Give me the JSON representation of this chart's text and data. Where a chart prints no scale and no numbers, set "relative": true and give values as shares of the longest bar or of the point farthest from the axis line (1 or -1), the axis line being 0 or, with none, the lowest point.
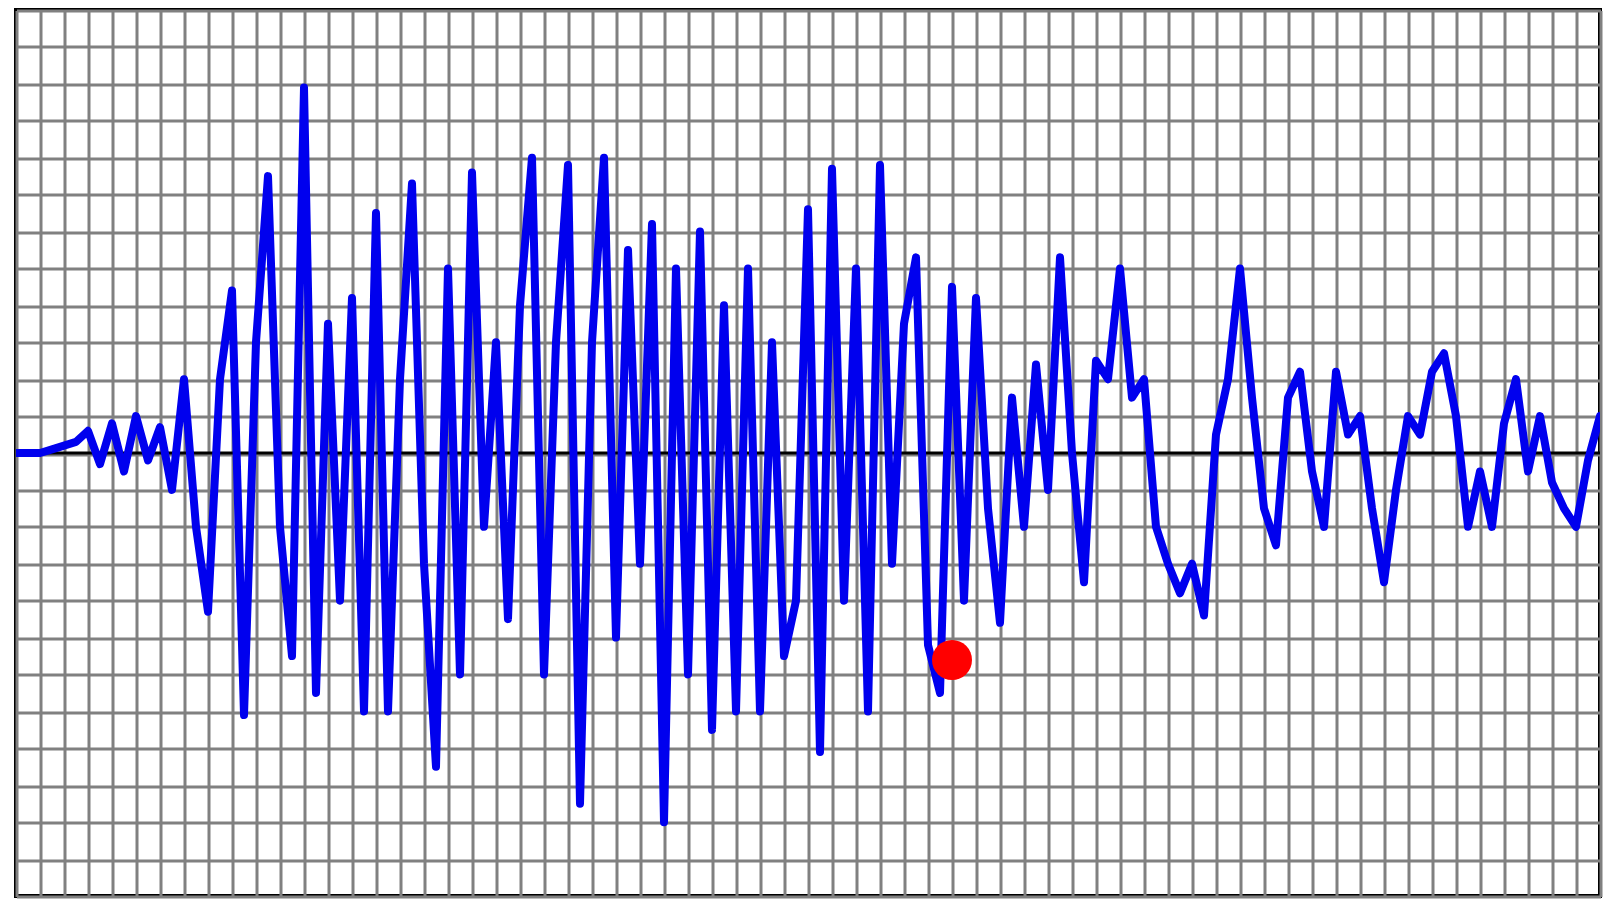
{
  "chart_data": {
    "type": "line",
    "relative": true,
    "grid": true,
    "categories": [
      null,
      null,
      null,
      null,
      null,
      null,
      null,
      null,
      null,
      null,
      null,
      null,
      null,
      null,
      null,
      null,
      null,
      null,
      null,
      null,
      null,
      null,
      null,
      null,
      null,
      null,
      null,
      null,
      null,
      null,
      null,
      null,
      null,
      null,
      null,
      null,
      null,
      null,
      null,
      null,
      null,
      null,
      null,
      null,
      null,
      null,
      null,
      null,
      null,
      null,
      null,
      null,
      null,
      null,
      null,
      null,
      null,
      null,
      null,
      null,
      null,
      null,
      null,
      null,
      null,
      null,
      null,
      null,
      null,
      null,
      null,
      null,
      null,
      null,
      null,
      null,
      null,
      null,
      null,
      null,
      null,
      null,
      null,
      null,
      null,
      null,
      null,
      null,
      null,
      null,
      null,
      null,
      null,
      null,
      null,
      null,
      null,
      null,
      null,
      null,
      null,
      null,
      null,
      null,
      null,
      null,
      null,
      null,
      null,
      null,
      null,
      null,
      null,
      null,
      null,
      null,
      null,
      null,
      null,
      null,
      null,
      null,
      null,
      null,
      null,
      null,
      null,
      null,
      null,
      null,
      null,
      null,
      null
    ],
    "series": [
      {
        "color": "#0000ee",
        "values": [
          0,
          0,
          0,
          0.01,
          0.02,
          0.03,
          0.06,
          -0.03,
          0.08,
          -0.05,
          0.1,
          -0.02,
          0.07,
          -0.1,
          0.2,
          -0.2,
          -0.43,
          0.2,
          0.44,
          -0.71,
          0.3,
          0.75,
          -0.2,
          -0.55,
          0.99,
          -0.65,
          0.35,
          -0.4,
          0.42,
          -0.7,
          0.65,
          -0.7,
          0.2,
          0.73,
          -0.3,
          -0.85,
          0.5,
          -0.6,
          0.76,
          -0.2,
          0.3,
          -0.45,
          0.4,
          0.8,
          -0.6,
          0.3,
          0.78,
          -0.95,
          0.3,
          0.8,
          -0.5,
          0.55,
          -0.3,
          0.62,
          -1,
          0.5,
          -0.6,
          0.6,
          -0.75,
          0.4,
          -0.7,
          0.5,
          -0.7,
          0.3,
          -0.55,
          -0.4,
          0.66,
          -0.81,
          0.77,
          -0.4,
          0.5,
          -0.7,
          0.78,
          -0.3,
          0.35,
          0.53,
          -0.52,
          -0.65,
          0.45,
          -0.4,
          0.42,
          -0.15,
          -0.46,
          0.15,
          -0.2,
          0.24,
          -0.1,
          0.53,
          0,
          -0.35,
          0.25,
          0.2,
          0.5,
          0.15,
          0.2,
          -0.2,
          -0.3,
          -0.38,
          -0.3,
          -0.44,
          0.05,
          0.2,
          0.5,
          0.15,
          -0.15,
          -0.25,
          0.15,
          0.22,
          -0.05,
          -0.2,
          0.22,
          0.05,
          0.1,
          -0.15,
          -0.35,
          -0.1,
          0.1,
          0.05,
          0.22,
          0.27,
          0.1,
          -0.2,
          -0.05,
          -0.2,
          0.08,
          0.2,
          -0.05,
          0.1,
          -0.08,
          -0.15,
          -0.2,
          -0.02,
          0.1
        ]
      }
    ]
  }
}
